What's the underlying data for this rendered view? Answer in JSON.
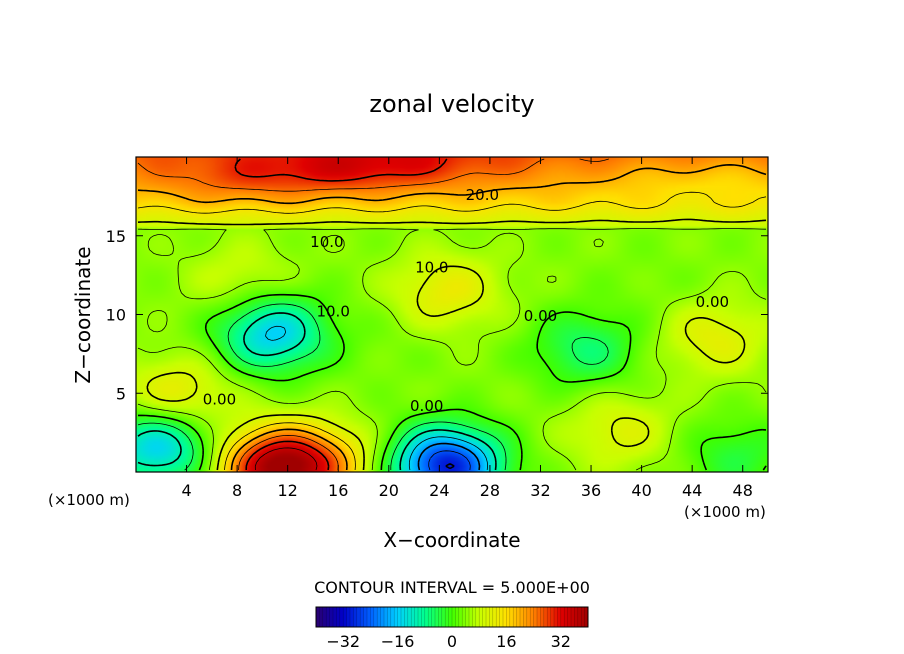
{
  "chart_data": {
    "type": "heatmap",
    "title": "zonal velocity",
    "xlabel": "X−coordinate",
    "ylabel": "Z−coordinate",
    "x_unit_left": "(×1000 m)",
    "x_unit_right": "(×1000 m)",
    "xlim": [
      0,
      50
    ],
    "ylim": [
      0,
      20
    ],
    "x_ticks": [
      4,
      8,
      12,
      16,
      20,
      24,
      28,
      32,
      36,
      40,
      44,
      48
    ],
    "y_ticks": [
      5,
      10,
      15
    ],
    "contour_interval_text": "CONTOUR INTERVAL = 5.000E+00",
    "contour_interval": 5,
    "colorbar": {
      "range": [
        -40,
        40
      ],
      "ticks": [
        -32,
        -16,
        0,
        16,
        32
      ],
      "colormap": [
        "#2a0070",
        "#0000c8",
        "#0060ff",
        "#00d0ff",
        "#00ff90",
        "#40ff00",
        "#c8ff00",
        "#ffe000",
        "#ff8000",
        "#e00000",
        "#a00000"
      ]
    },
    "contour_labels": [
      {
        "text": "20.0",
        "x": 27.4,
        "z": 17.6
      },
      {
        "text": "10.0",
        "x": 15.1,
        "z": 14.6
      },
      {
        "text": "10.0",
        "x": 23.4,
        "z": 13.0
      },
      {
        "text": "10.0",
        "x": 15.6,
        "z": 10.2
      },
      {
        "text": "0.00",
        "x": 32.0,
        "z": 9.9
      },
      {
        "text": "0.00",
        "x": 45.6,
        "z": 10.8
      },
      {
        "text": "0.00",
        "x": 6.6,
        "z": 4.6
      },
      {
        "text": "0.00",
        "x": 23.0,
        "z": 4.2
      }
    ],
    "field_features": [
      {
        "x": 2,
        "z": 19,
        "value": 22
      },
      {
        "x": 8,
        "z": 18.5,
        "value": 26
      },
      {
        "x": 16,
        "z": 19.2,
        "value": 30
      },
      {
        "x": 22,
        "z": 19.5,
        "value": 28
      },
      {
        "x": 30,
        "z": 19,
        "value": 23
      },
      {
        "x": 38,
        "z": 18.5,
        "value": 20
      },
      {
        "x": 46,
        "z": 18.5,
        "value": 17
      },
      {
        "x": 10.8,
        "z": 8.8,
        "value": -16
      },
      {
        "x": 35.6,
        "z": 7.8,
        "value": -6
      },
      {
        "x": 24.6,
        "z": 11.5,
        "value": 13
      },
      {
        "x": 45.8,
        "z": 8.5,
        "value": 12
      },
      {
        "x": 3.2,
        "z": 4.8,
        "value": 14
      },
      {
        "x": 8.3,
        "z": 12.2,
        "value": 9
      },
      {
        "x": 1.8,
        "z": 1.6,
        "value": -16
      },
      {
        "x": 10.8,
        "z": 0.3,
        "value": 34
      },
      {
        "x": 14.5,
        "z": 0.5,
        "value": 20
      },
      {
        "x": 24.6,
        "z": 0.4,
        "value": -30
      },
      {
        "x": 38.3,
        "z": 2.6,
        "value": 11
      },
      {
        "x": 19.5,
        "z": 8,
        "value": 3
      },
      {
        "x": 41,
        "z": 12,
        "value": 3
      },
      {
        "x": 47.5,
        "z": 1,
        "value": -3
      }
    ]
  }
}
